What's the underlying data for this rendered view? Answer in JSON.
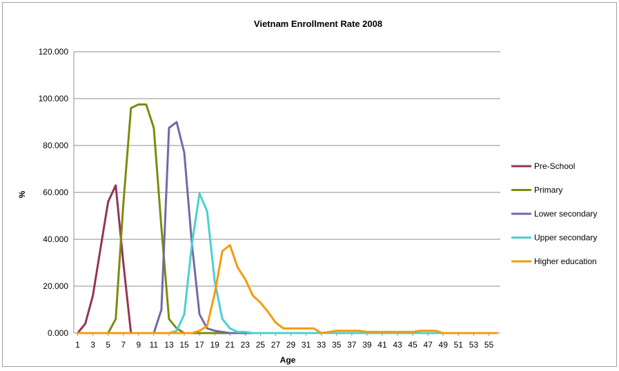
{
  "chart_data": {
    "type": "line",
    "title": "Vietnam Enrollment Rate 2008",
    "xlabel": "Age",
    "ylabel": "%",
    "ylim": [
      0,
      120
    ],
    "xlim": [
      1,
      56
    ],
    "yticks": [
      "0.000",
      "20.000",
      "40.000",
      "60.000",
      "80.000",
      "100.000",
      "120.000"
    ],
    "xtick_labels": [
      1,
      3,
      5,
      7,
      9,
      11,
      13,
      15,
      17,
      19,
      21,
      23,
      25,
      27,
      29,
      31,
      33,
      35,
      37,
      39,
      41,
      43,
      45,
      47,
      49,
      51,
      53,
      55
    ],
    "grid": "horizontal",
    "legend_position": "right",
    "x": [
      1,
      2,
      3,
      4,
      5,
      6,
      7,
      8,
      9,
      10,
      11,
      12,
      13,
      14,
      15,
      16,
      17,
      18,
      19,
      20,
      21,
      22,
      23,
      24,
      25,
      26,
      27,
      28,
      29,
      30,
      31,
      32,
      33,
      34,
      35,
      36,
      37,
      38,
      39,
      40,
      41,
      42,
      43,
      44,
      45,
      46,
      47,
      48,
      49,
      50,
      51,
      52,
      53,
      54,
      55,
      56
    ],
    "series": [
      {
        "name": "Pre-School",
        "color": "#953356",
        "values": [
          0,
          4,
          16,
          36,
          56,
          63,
          30,
          0,
          0,
          0,
          0,
          0,
          0,
          0,
          0,
          0,
          0,
          0,
          0,
          0,
          0,
          0,
          0,
          0,
          0,
          0,
          0,
          0,
          0,
          0,
          0,
          0,
          0,
          0,
          0,
          0,
          0,
          0,
          0,
          0,
          0,
          0,
          0,
          0,
          0,
          0,
          0,
          0,
          0,
          0,
          0,
          0,
          0,
          0,
          0,
          0
        ]
      },
      {
        "name": "Primary",
        "color": "#7f8a0a",
        "values": [
          0,
          0,
          0,
          0,
          0,
          6,
          55,
          96,
          97.5,
          97.5,
          87.5,
          45,
          6,
          2,
          0,
          0,
          0,
          0,
          0,
          0,
          0,
          0,
          0,
          0,
          0,
          0,
          0,
          0,
          0,
          0,
          0,
          0,
          0,
          0,
          0,
          0,
          0,
          0,
          0,
          0,
          0,
          0,
          0,
          0,
          0,
          0,
          0,
          0,
          0,
          0,
          0,
          0,
          0,
          0,
          0,
          0
        ]
      },
      {
        "name": "Lower secondary",
        "color": "#6e6aa8",
        "values": [
          0,
          0,
          0,
          0,
          0,
          0,
          0,
          0,
          0,
          0,
          0,
          10,
          87.5,
          90,
          77,
          38,
          8,
          2,
          1,
          0.5,
          0,
          0,
          0,
          0,
          0,
          0,
          0,
          0,
          0,
          0,
          0,
          0,
          0,
          0,
          0,
          0,
          0,
          0,
          0,
          0,
          0,
          0,
          0,
          0,
          0,
          0,
          0,
          0,
          0,
          0,
          0,
          0,
          0,
          0,
          0,
          0
        ]
      },
      {
        "name": "Upper secondary",
        "color": "#4bd1cc",
        "values": [
          0,
          0,
          0,
          0,
          0,
          0,
          0,
          0,
          0,
          0,
          0,
          0,
          0,
          1,
          8,
          38,
          59.5,
          52,
          22,
          6,
          2,
          0.5,
          0.5,
          0,
          0,
          0,
          0,
          0,
          0,
          0,
          0,
          0,
          0,
          0,
          0,
          0,
          0,
          0,
          0,
          0,
          0,
          0,
          0,
          0,
          0,
          0,
          0,
          0,
          0,
          0,
          0,
          0,
          0,
          0,
          0,
          0
        ]
      },
      {
        "name": "Higher education",
        "color": "#f79a0a",
        "values": [
          0,
          0,
          0,
          0,
          0,
          0,
          0,
          0,
          0,
          0,
          0,
          0,
          0,
          0,
          0,
          0,
          1,
          3,
          17,
          35,
          37.5,
          28,
          23,
          16,
          13,
          9,
          4.5,
          2,
          2,
          2,
          2,
          2,
          0,
          0.5,
          1,
          1,
          1,
          1,
          0.5,
          0.5,
          0.5,
          0.5,
          0.5,
          0.5,
          0.5,
          1,
          1,
          1,
          0,
          0,
          0,
          0,
          0,
          0,
          0,
          0
        ]
      }
    ]
  }
}
